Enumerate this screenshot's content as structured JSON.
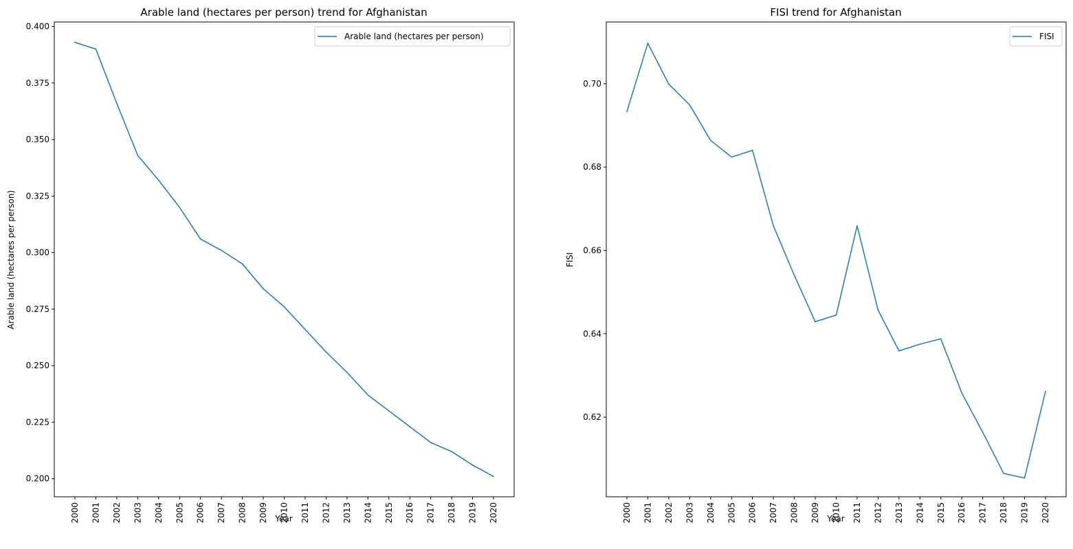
{
  "chart_data": [
    {
      "type": "line",
      "title": "Arable land (hectares per person) trend for Afghanistan",
      "xlabel": "Year",
      "ylabel": "Arable land (hectares per person)",
      "ylim": [
        0.192,
        0.402
      ],
      "yticks": [
        "0.200",
        "0.225",
        "0.250",
        "0.275",
        "0.300",
        "0.325",
        "0.350",
        "0.375",
        "0.400"
      ],
      "ytick_values": [
        0.2,
        0.225,
        0.25,
        0.275,
        0.3,
        0.325,
        0.35,
        0.375,
        0.4
      ],
      "x": [
        "2000",
        "2001",
        "2002",
        "2003",
        "2004",
        "2005",
        "2006",
        "2007",
        "2008",
        "2009",
        "2010",
        "2011",
        "2012",
        "2013",
        "2014",
        "2015",
        "2016",
        "2017",
        "2018",
        "2019",
        "2020"
      ],
      "series": [
        {
          "name": "Arable land (hectares per person)",
          "color": "#1f77b4",
          "values": [
            0.393,
            0.39,
            0.366,
            0.343,
            0.332,
            0.32,
            0.306,
            0.301,
            0.295,
            0.284,
            0.276,
            0.266,
            0.256,
            0.247,
            0.237,
            0.23,
            0.223,
            0.216,
            0.212,
            0.206,
            0.201
          ]
        }
      ],
      "legend": "top-right",
      "grid": false
    },
    {
      "type": "line",
      "title": "FISI trend for Afghanistan",
      "xlabel": "Year",
      "ylabel": "FISI",
      "ylim": [
        0.6009,
        0.7148
      ],
      "yticks": [
        "0.62",
        "0.64",
        "0.66",
        "0.68",
        "0.70"
      ],
      "ytick_values": [
        0.62,
        0.64,
        0.66,
        0.68,
        0.7
      ],
      "x": [
        "2000",
        "2001",
        "2002",
        "2003",
        "2004",
        "2005",
        "2006",
        "2007",
        "2008",
        "2009",
        "2010",
        "2011",
        "2012",
        "2013",
        "2014",
        "2015",
        "2016",
        "2017",
        "2018",
        "2019",
        "2020"
      ],
      "series": [
        {
          "name": "FISI",
          "color": "#1f77b4",
          "values": [
            0.6933,
            0.7097,
            0.6999,
            0.6949,
            0.6864,
            0.6824,
            0.684,
            0.6659,
            0.654,
            0.6429,
            0.6445,
            0.6659,
            0.6457,
            0.6359,
            0.6375,
            0.6388,
            0.6258,
            0.6164,
            0.6065,
            0.6054,
            0.6262
          ]
        }
      ],
      "legend": "top-right",
      "grid": false
    }
  ]
}
